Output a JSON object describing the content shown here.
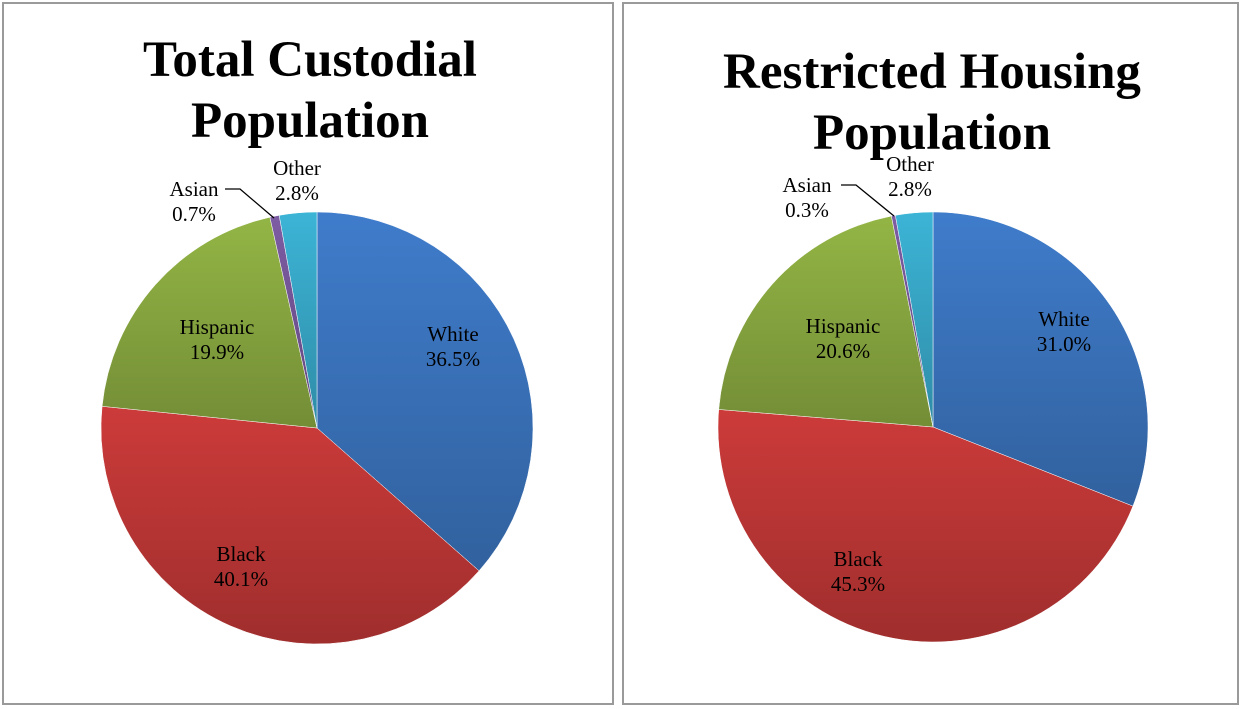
{
  "colors": {
    "White": "#3f7ccb",
    "Black": "#cc3b3a",
    "Hispanic": "#93b545",
    "Asian": "#7d5ca3",
    "Other": "#3cb4d6"
  },
  "chart_data": [
    {
      "type": "pie",
      "title": [
        "Total Custodial",
        "Population"
      ],
      "slices": [
        {
          "category": "White",
          "value": 36.5,
          "label": "36.5%"
        },
        {
          "category": "Black",
          "value": 40.1,
          "label": "40.1%"
        },
        {
          "category": "Hispanic",
          "value": 19.9,
          "label": "19.9%"
        },
        {
          "category": "Asian",
          "value": 0.7,
          "label": "0.7%"
        },
        {
          "category": "Other",
          "value": 2.8,
          "label": "2.8%"
        }
      ],
      "legend": "none"
    },
    {
      "type": "pie",
      "title": [
        "Restricted Housing",
        "Population"
      ],
      "slices": [
        {
          "category": "White",
          "value": 31.0,
          "label": "31.0%"
        },
        {
          "category": "Black",
          "value": 45.3,
          "label": "45.3%"
        },
        {
          "category": "Hispanic",
          "value": 20.6,
          "label": "20.6%"
        },
        {
          "category": "Asian",
          "value": 0.3,
          "label": "0.3%"
        },
        {
          "category": "Other",
          "value": 2.8,
          "label": "2.8%"
        }
      ],
      "legend": "none"
    }
  ]
}
